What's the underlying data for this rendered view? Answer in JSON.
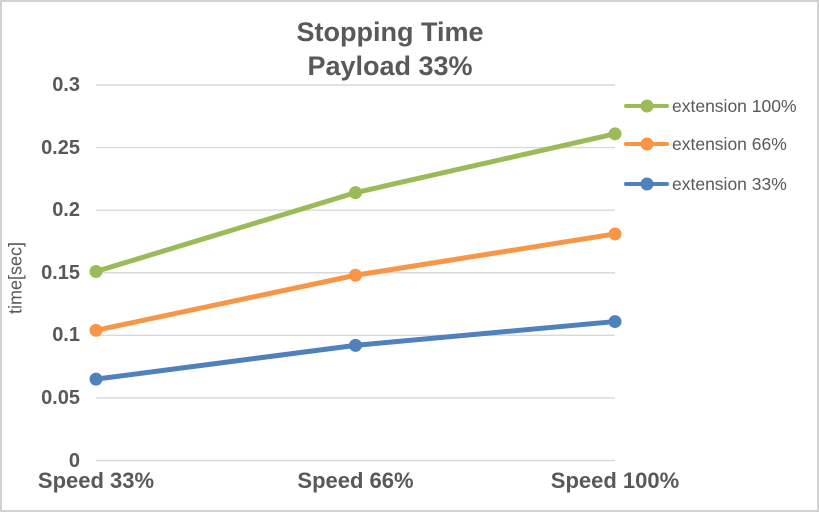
{
  "chart_data": {
    "type": "line",
    "title_lines": [
      "Stopping Time",
      "Payload 33%"
    ],
    "ylabel": "time[sec]",
    "xlabel": "",
    "categories": [
      "Speed 33%",
      "Speed 66%",
      "Speed 100%"
    ],
    "series": [
      {
        "name": "extension 100%",
        "color": "#9BBB59",
        "values": [
          0.151,
          0.214,
          0.261
        ]
      },
      {
        "name": "extension 66%",
        "color": "#F79646",
        "values": [
          0.104,
          0.148,
          0.181
        ]
      },
      {
        "name": "extension 33%",
        "color": "#4F81BD",
        "values": [
          0.065,
          0.092,
          0.111
        ]
      }
    ],
    "ylim": [
      0,
      0.3
    ],
    "yticks": [
      "0",
      "0.05",
      "0.1",
      "0.15",
      "0.2",
      "0.25",
      "0.3"
    ],
    "grid": true,
    "legend_position": "right",
    "marker": "circle"
  },
  "colors": {
    "text": "#595959",
    "grid": "#D9D9D9",
    "border": "#D2D2D2",
    "background": "#FFFFFF"
  }
}
